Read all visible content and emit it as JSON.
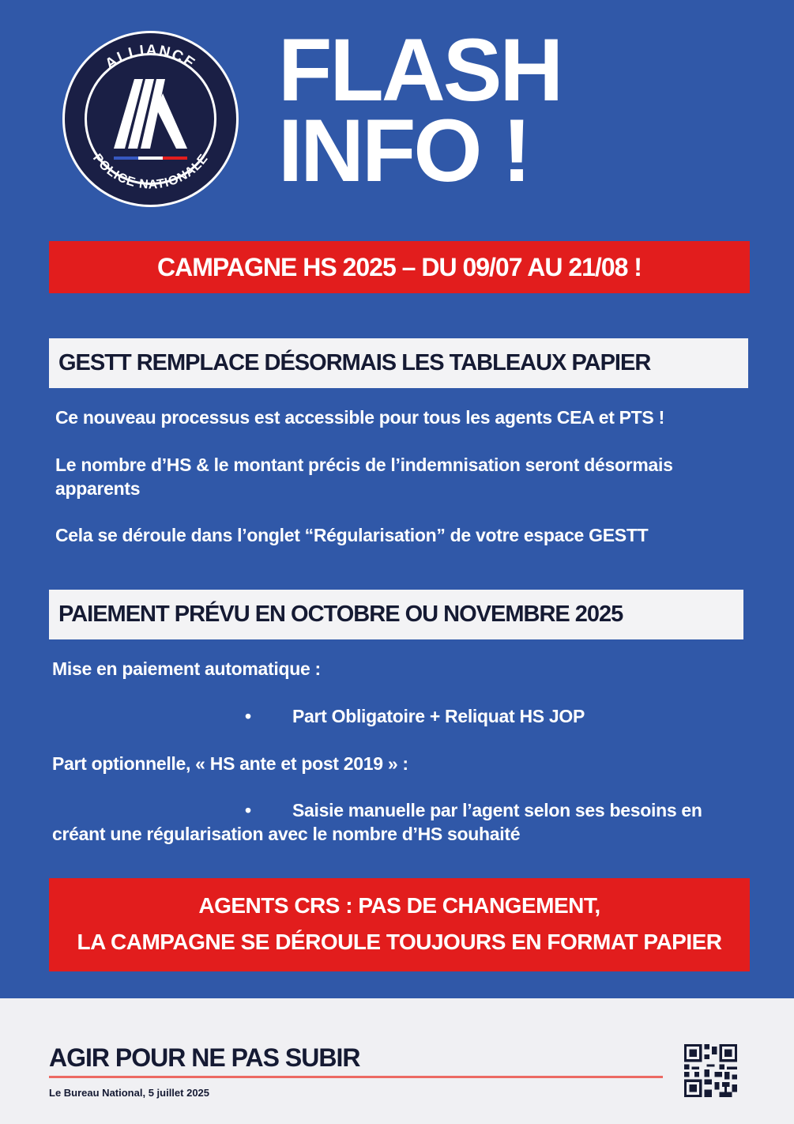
{
  "logo": {
    "top_text": "ALLIANCE",
    "bottom_text": "POLICE NATIONALE"
  },
  "title": {
    "line1": "FLASH",
    "line2": "INFO !"
  },
  "banner": "CAMPAGNE HS 2025 – DU 09/07 AU 21/08 !",
  "section1": {
    "heading": "GESTT REMPLACE DÉSORMAIS LES TABLEAUX PAPIER",
    "paragraphs": [
      "Ce nouveau processus est accessible pour tous les agents CEA et PTS !",
      "Le nombre d’HS & le montant précis de l’indemnisation seront désormais apparents",
      "Cela se déroule dans l’onglet “Régularisation” de votre espace GESTT"
    ]
  },
  "section2": {
    "heading": "PAIEMENT PRÉVU EN OCTOBRE OU NOVEMBRE 2025",
    "intro1": "Mise en paiement automatique :",
    "bullet1": "Part Obligatoire + Reliquat HS JOP",
    "intro2": "Part optionnelle, « HS ante et post 2019 » :",
    "bullet2_line1": "Saisie manuelle par l’agent selon ses besoins en",
    "bullet2_line2": "créant une régularisation avec le nombre d’HS souhaité",
    "bullet_symbol": "•"
  },
  "crs": {
    "line1": "AGENTS CRS : PAS DE CHANGEMENT,",
    "line2": "LA CAMPAGNE SE DÉROULE TOUJOURS EN FORMAT PAPIER"
  },
  "footer": {
    "slogan": "AGIR POUR NE PAS SUBIR",
    "signature": "Le Bureau National, 5 juillet 2025",
    "qr_icon": "qr-code-icon"
  },
  "colors": {
    "background": "#3058a8",
    "red": "#e21d1d",
    "navy": "#151a33",
    "footer_bg": "#f0f0f3"
  }
}
